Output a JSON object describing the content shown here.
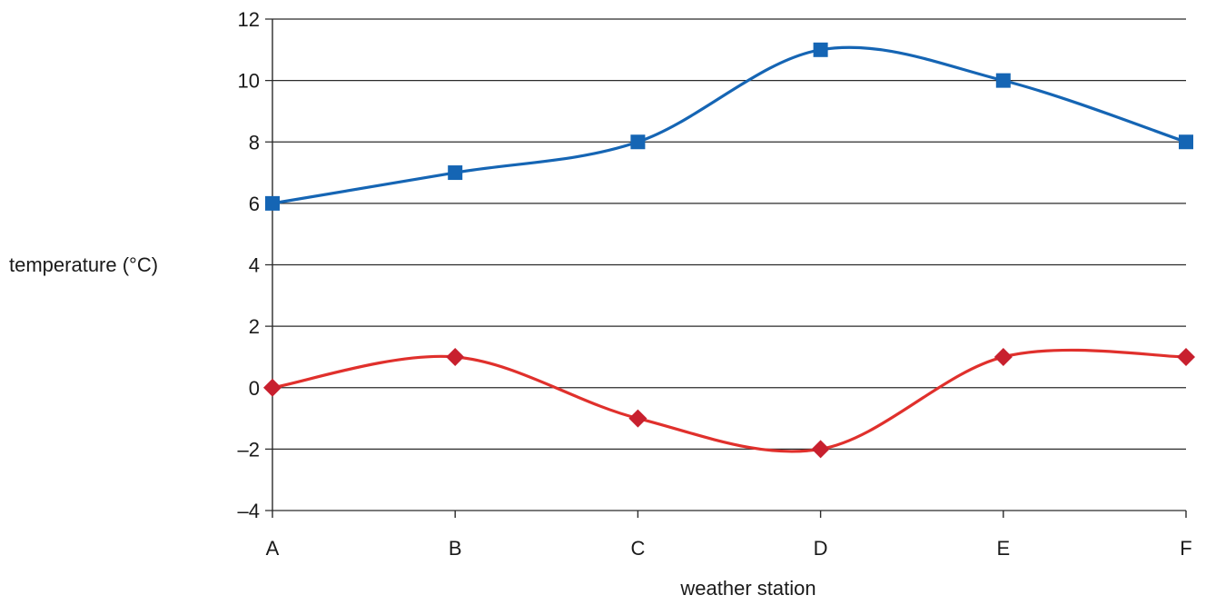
{
  "chart_data": {
    "type": "line",
    "title": "",
    "xlabel": "weather station",
    "ylabel": "temperature (°C)",
    "categories": [
      "A",
      "B",
      "C",
      "D",
      "E",
      "F"
    ],
    "ylim": [
      -4,
      12
    ],
    "yticks": [
      -4,
      -2,
      0,
      2,
      4,
      6,
      8,
      10,
      12
    ],
    "ytick_labels": [
      "–4",
      "–2",
      "0",
      "2",
      "4",
      "6",
      "8",
      "10",
      "12"
    ],
    "grid": true,
    "smooth": true,
    "series": [
      {
        "values": [
          6,
          7,
          8,
          11,
          10,
          8
        ],
        "color": "#1565b4",
        "marker": "square"
      },
      {
        "values": [
          0,
          1,
          -1,
          -2,
          1,
          1
        ],
        "color": "#e0302c",
        "marker_color": "#c8202e",
        "marker": "diamond"
      }
    ]
  }
}
